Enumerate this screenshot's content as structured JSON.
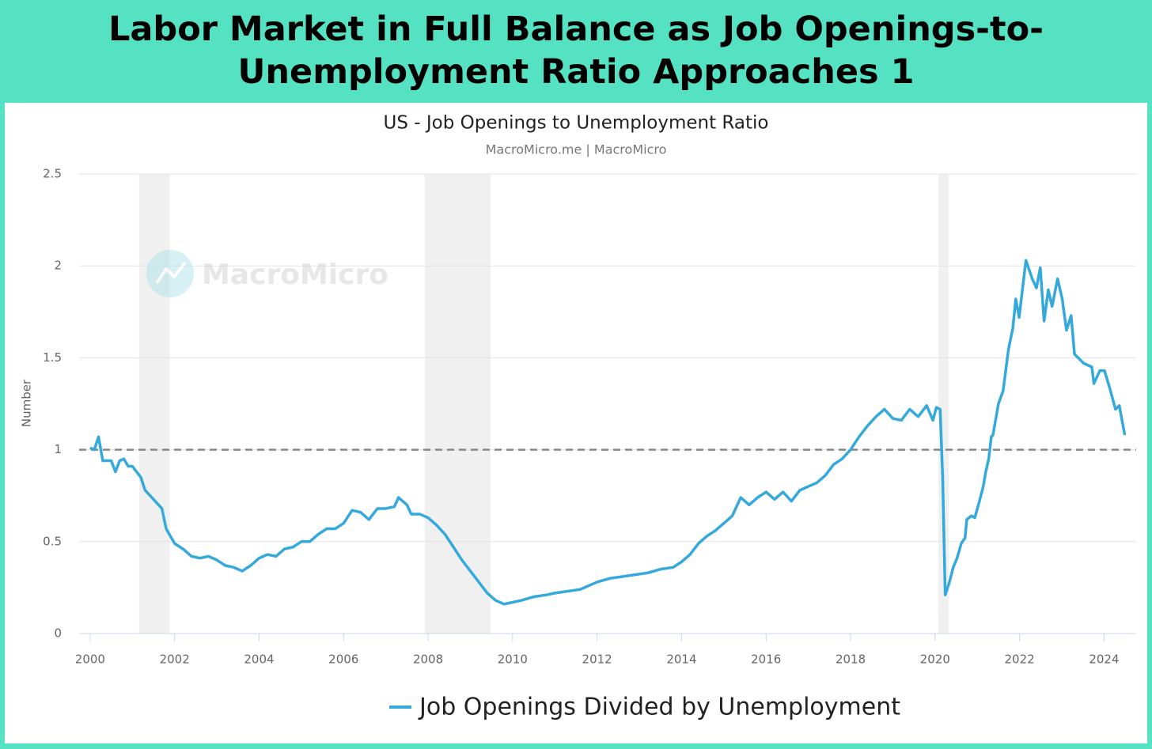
{
  "chart_data": {
    "type": "line",
    "title": "Labor Market in Full Balance as Job Openings-to-Unemployment Ratio Approaches 1",
    "subtitle": "US - Job Openings to Unemployment Ratio",
    "source": "MacroMicro.me | MacroMicro",
    "watermark": "MacroMicro",
    "y_label": "Number",
    "xlim": [
      1999.74,
      2024.76
    ],
    "xticks": [
      2000,
      2002,
      2004,
      2006,
      2008,
      2010,
      2012,
      2014,
      2016,
      2018,
      2020,
      2022,
      2024
    ],
    "ylim": [
      0,
      2.5
    ],
    "yticks": [
      0,
      0.5,
      1,
      1.5,
      2,
      2.5
    ],
    "grid": true,
    "reference_line": 1,
    "recessions": [
      [
        2001.16,
        2001.89
      ],
      [
        2007.92,
        2009.48
      ],
      [
        2020.08,
        2020.32
      ]
    ],
    "legend": "bottom",
    "series": [
      {
        "name": "Job Openings Divided by Unemployment",
        "color": "#35a9dc",
        "x": [
          2000.0,
          2000.1,
          2000.2,
          2000.3,
          2000.5,
          2000.6,
          2000.7,
          2000.8,
          2000.9,
          2001.0,
          2001.2,
          2001.3,
          2001.5,
          2001.7,
          2001.8,
          2002.0,
          2002.2,
          2002.4,
          2002.6,
          2002.8,
          2003.0,
          2003.2,
          2003.4,
          2003.6,
          2003.8,
          2004.0,
          2004.2,
          2004.4,
          2004.6,
          2004.8,
          2005.0,
          2005.2,
          2005.4,
          2005.6,
          2005.8,
          2006.0,
          2006.2,
          2006.4,
          2006.6,
          2006.8,
          2007.0,
          2007.2,
          2007.3,
          2007.5,
          2007.6,
          2007.8,
          2008.0,
          2008.2,
          2008.4,
          2008.6,
          2008.8,
          2009.0,
          2009.2,
          2009.4,
          2009.6,
          2009.8,
          2010.0,
          2010.2,
          2010.5,
          2010.8,
          2011.0,
          2011.3,
          2011.6,
          2011.8,
          2012.0,
          2012.3,
          2012.6,
          2012.9,
          2013.2,
          2013.5,
          2013.8,
          2014.0,
          2014.2,
          2014.4,
          2014.6,
          2014.8,
          2015.0,
          2015.2,
          2015.4,
          2015.6,
          2015.8,
          2016.0,
          2016.2,
          2016.4,
          2016.6,
          2016.8,
          2017.0,
          2017.2,
          2017.4,
          2017.6,
          2017.8,
          2018.0,
          2018.2,
          2018.4,
          2018.6,
          2018.8,
          2019.0,
          2019.2,
          2019.4,
          2019.6,
          2019.8,
          2019.95,
          2020.03,
          2020.12,
          2020.18,
          2020.24,
          2020.34,
          2020.43,
          2020.52,
          2020.62,
          2020.71,
          2020.75,
          2020.86,
          2020.94,
          2021.05,
          2021.14,
          2021.2,
          2021.27,
          2021.33,
          2021.37,
          2021.5,
          2021.61,
          2021.74,
          2021.84,
          2021.91,
          2021.99,
          2022.15,
          2022.3,
          2022.4,
          2022.49,
          2022.58,
          2022.68,
          2022.77,
          2022.9,
          2023.01,
          2023.11,
          2023.22,
          2023.3,
          2023.52,
          2023.71,
          2023.76,
          2023.9,
          2024.01,
          2024.14,
          2024.27,
          2024.36,
          2024.49
        ],
        "values": [
          1.01,
          1.0,
          1.07,
          0.94,
          0.94,
          0.88,
          0.94,
          0.95,
          0.91,
          0.91,
          0.85,
          0.78,
          0.73,
          0.68,
          0.57,
          0.49,
          0.46,
          0.42,
          0.41,
          0.42,
          0.4,
          0.37,
          0.36,
          0.34,
          0.37,
          0.41,
          0.43,
          0.42,
          0.46,
          0.47,
          0.5,
          0.5,
          0.54,
          0.57,
          0.57,
          0.6,
          0.67,
          0.66,
          0.62,
          0.68,
          0.68,
          0.69,
          0.74,
          0.7,
          0.65,
          0.65,
          0.63,
          0.59,
          0.54,
          0.47,
          0.4,
          0.34,
          0.28,
          0.22,
          0.18,
          0.16,
          0.17,
          0.18,
          0.2,
          0.21,
          0.22,
          0.23,
          0.24,
          0.26,
          0.28,
          0.3,
          0.31,
          0.32,
          0.33,
          0.35,
          0.36,
          0.39,
          0.43,
          0.49,
          0.53,
          0.56,
          0.6,
          0.64,
          0.74,
          0.7,
          0.74,
          0.77,
          0.73,
          0.77,
          0.72,
          0.78,
          0.8,
          0.82,
          0.86,
          0.92,
          0.95,
          1.0,
          1.07,
          1.13,
          1.18,
          1.22,
          1.17,
          1.16,
          1.22,
          1.18,
          1.24,
          1.16,
          1.23,
          1.22,
          0.85,
          0.21,
          0.28,
          0.36,
          0.41,
          0.49,
          0.52,
          0.62,
          0.64,
          0.63,
          0.72,
          0.8,
          0.88,
          0.95,
          1.07,
          1.08,
          1.25,
          1.32,
          1.55,
          1.66,
          1.82,
          1.72,
          2.03,
          1.93,
          1.88,
          1.99,
          1.7,
          1.87,
          1.78,
          1.93,
          1.82,
          1.65,
          1.73,
          1.52,
          1.47,
          1.45,
          1.36,
          1.43,
          1.43,
          1.33,
          1.22,
          1.24,
          1.08
        ]
      }
    ]
  }
}
